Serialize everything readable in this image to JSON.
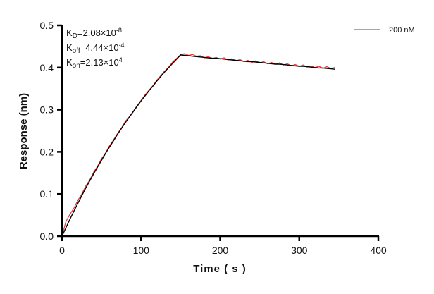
{
  "chart_data": {
    "type": "line",
    "title": "",
    "xlabel": "Time ( s )",
    "ylabel": "Response (nm)",
    "xlim": [
      0,
      400
    ],
    "ylim": [
      0,
      0.5
    ],
    "xticks": [
      "0",
      "100",
      "200",
      "300",
      "400"
    ],
    "yticks": [
      "0.0",
      "0.1",
      "0.2",
      "0.3",
      "0.4",
      "0.5"
    ],
    "grid": false,
    "legend_position": "top-right",
    "annotations": {
      "kd": {
        "label": "K",
        "sub": "D",
        "value": "=2.08×10",
        "exp": "-8"
      },
      "koff": {
        "label": "K",
        "sub": "off",
        "value": "=4.44×10",
        "exp": "-4"
      },
      "kon": {
        "label": "K",
        "sub": "on",
        "value": "=2.13×10",
        "exp": "4"
      }
    },
    "x": [
      0,
      5,
      10,
      15,
      20,
      25,
      30,
      35,
      40,
      45,
      50,
      55,
      60,
      65,
      70,
      75,
      80,
      85,
      90,
      95,
      100,
      105,
      110,
      115,
      120,
      125,
      130,
      135,
      140,
      145,
      150,
      155,
      160,
      165,
      170,
      175,
      180,
      185,
      190,
      195,
      200,
      205,
      210,
      215,
      220,
      225,
      230,
      235,
      240,
      245,
      250,
      255,
      260,
      265,
      270,
      275,
      280,
      285,
      290,
      295,
      300,
      305,
      310,
      315,
      320,
      325,
      330,
      335,
      340,
      345
    ],
    "series": [
      {
        "name": "200 nM",
        "color": "#e8403f",
        "values": [
          0.0,
          0.035,
          0.052,
          0.066,
          0.085,
          0.1,
          0.119,
          0.133,
          0.152,
          0.166,
          0.184,
          0.197,
          0.214,
          0.228,
          0.243,
          0.256,
          0.272,
          0.283,
          0.296,
          0.31,
          0.322,
          0.335,
          0.346,
          0.357,
          0.37,
          0.381,
          0.392,
          0.401,
          0.413,
          0.422,
          0.431,
          0.433,
          0.429,
          0.431,
          0.427,
          0.428,
          0.423,
          0.426,
          0.421,
          0.424,
          0.42,
          0.423,
          0.418,
          0.421,
          0.416,
          0.419,
          0.414,
          0.417,
          0.412,
          0.416,
          0.411,
          0.414,
          0.409,
          0.412,
          0.408,
          0.411,
          0.406,
          0.409,
          0.404,
          0.407,
          0.403,
          0.406,
          0.401,
          0.404,
          0.4,
          0.403,
          0.398,
          0.402,
          0.398,
          0.4
        ]
      },
      {
        "color": "#000000",
        "values": [
          0.0,
          0.02,
          0.04,
          0.059,
          0.078,
          0.096,
          0.114,
          0.131,
          0.148,
          0.164,
          0.18,
          0.196,
          0.211,
          0.226,
          0.241,
          0.255,
          0.269,
          0.282,
          0.295,
          0.308,
          0.321,
          0.333,
          0.345,
          0.356,
          0.368,
          0.379,
          0.39,
          0.4,
          0.41,
          0.42,
          0.43,
          0.429,
          0.428,
          0.427,
          0.426,
          0.425,
          0.424,
          0.423,
          0.422,
          0.422,
          0.421,
          0.42,
          0.419,
          0.418,
          0.417,
          0.416,
          0.415,
          0.414,
          0.414,
          0.413,
          0.412,
          0.411,
          0.41,
          0.409,
          0.408,
          0.408,
          0.407,
          0.406,
          0.405,
          0.404,
          0.403,
          0.403,
          0.402,
          0.401,
          0.4,
          0.399,
          0.399,
          0.398,
          0.397,
          0.396
        ]
      }
    ]
  }
}
